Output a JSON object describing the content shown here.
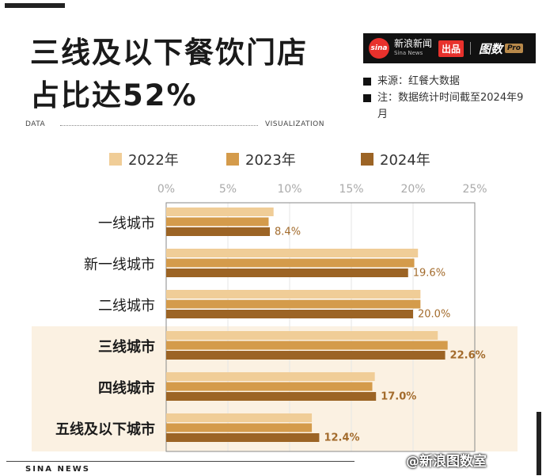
{
  "title_lines": [
    "三线及以下餐饮门店",
    "占比达52%"
  ],
  "brand": {
    "logo_text": "sina",
    "name_cn": "新浪新闻",
    "name_en": "Sina News",
    "badge": "出品",
    "separator": "|",
    "product": "图数",
    "product_suffix": "Pro"
  },
  "notes": [
    "来源：红餐大数据",
    "注：数据统计时间截至2024年9月"
  ],
  "band": {
    "left": "DATA",
    "right": "VISUALIZATION"
  },
  "footer": "SINA NEWS",
  "credit": "@新浪图数室",
  "colors": {
    "series": [
      "#f0cd97",
      "#d49b4b",
      "#9c6425"
    ],
    "label": "#a36b2c",
    "highlight": "#fbf1e2"
  },
  "chart_data": {
    "type": "bar",
    "orientation": "horizontal",
    "categories": [
      "一线城市",
      "新一线城市",
      "二线城市",
      "三线城市",
      "四线城市",
      "五线及以下城市"
    ],
    "bold_categories": [
      "三线城市",
      "四线城市",
      "五线及以下城市"
    ],
    "series": [
      {
        "name": "2022年",
        "values": [
          8.7,
          20.4,
          20.6,
          22.0,
          16.9,
          11.8
        ]
      },
      {
        "name": "2023年",
        "values": [
          8.3,
          20.1,
          20.6,
          22.8,
          16.7,
          11.8
        ]
      },
      {
        "name": "2024年",
        "values": [
          8.4,
          19.6,
          20.0,
          22.6,
          17.0,
          12.4
        ]
      }
    ],
    "data_labels": [
      "8.4%",
      "19.6%",
      "20.0%",
      "22.6%",
      "17.0%",
      "12.4%"
    ],
    "x_ticks": [
      "0%",
      "5%",
      "10%",
      "15%",
      "20%",
      "25%"
    ],
    "xlim": [
      0,
      25
    ],
    "grid": true,
    "legend_position": "top"
  }
}
